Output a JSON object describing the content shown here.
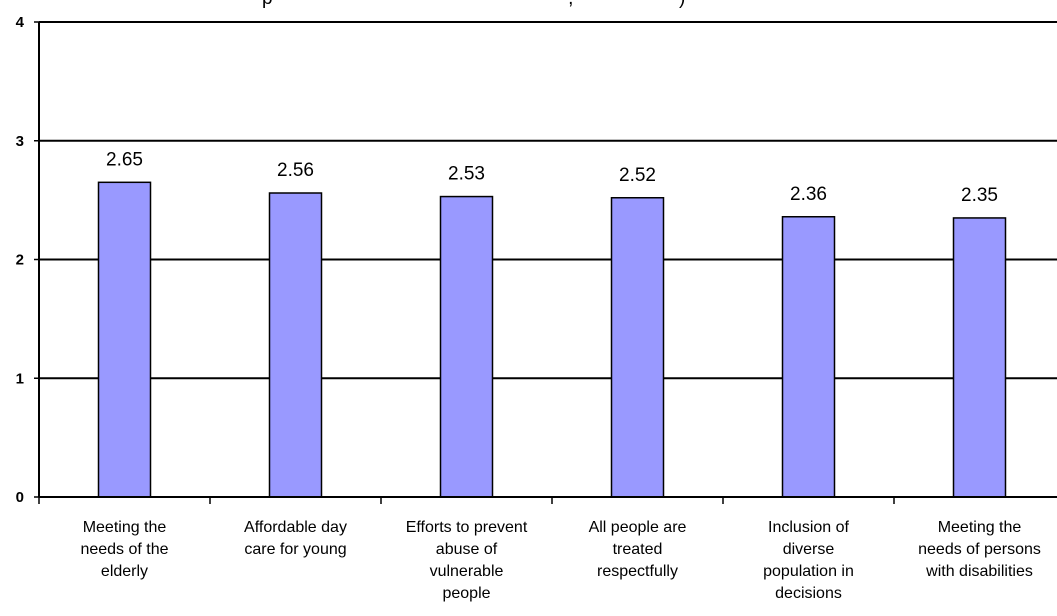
{
  "chart_data": {
    "type": "bar",
    "title": "p                                                        ,                    )",
    "categories": [
      [
        "Meeting the",
        "needs of the",
        "elderly"
      ],
      [
        "Affordable day",
        "care for young"
      ],
      [
        "Efforts to prevent",
        "abuse of",
        "vulnerable",
        "people"
      ],
      [
        "All people are",
        "treated",
        "respectfully"
      ],
      [
        "Inclusion of",
        "diverse",
        "population in",
        "decisions"
      ],
      [
        "Meeting the",
        "needs of persons",
        "with disabilities"
      ]
    ],
    "values": [
      2.65,
      2.56,
      2.53,
      2.52,
      2.36,
      2.35
    ],
    "data_labels": [
      "2.65",
      "2.56",
      "2.53",
      "2.52",
      "2.36",
      "2.35"
    ],
    "y_ticks": [
      "0",
      "1",
      "2",
      "3",
      "4"
    ],
    "ylim": [
      0,
      4
    ],
    "xlabel": "",
    "ylabel": "",
    "grid": true,
    "legend": "none",
    "colors": {
      "bar_fill": "#9999ff",
      "bar_stroke": "#000000",
      "grid": "#000000"
    }
  }
}
